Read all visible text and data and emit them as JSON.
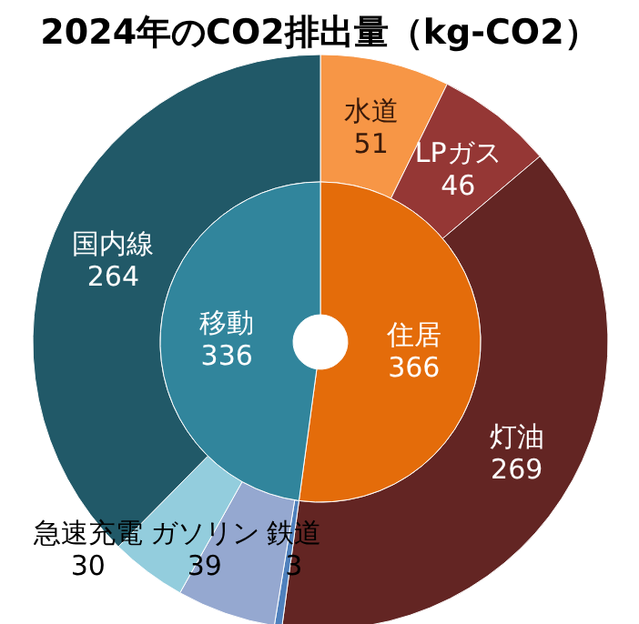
{
  "chart_data": [
    {
      "type": "donut",
      "title": "2024年のCO2排出量（kg-CO2）",
      "data_labels": true,
      "categories": [
        "住居",
        "移動"
      ],
      "values": [
        366,
        336
      ],
      "colors": [
        "#e46c0a",
        "#31859c"
      ]
    },
    {
      "type": "donut",
      "data_labels": true,
      "categories": [
        "水道",
        "LPガス",
        "灯油",
        "鉄道",
        "ガソリン",
        "急速充電",
        "国内線"
      ],
      "values": [
        51,
        46,
        269,
        3,
        39,
        30,
        264
      ],
      "colors": [
        "#f79646",
        "#953735",
        "#632523",
        "#4f81bd",
        "#95a8d0",
        "#93cddd",
        "#215968"
      ]
    }
  ]
}
